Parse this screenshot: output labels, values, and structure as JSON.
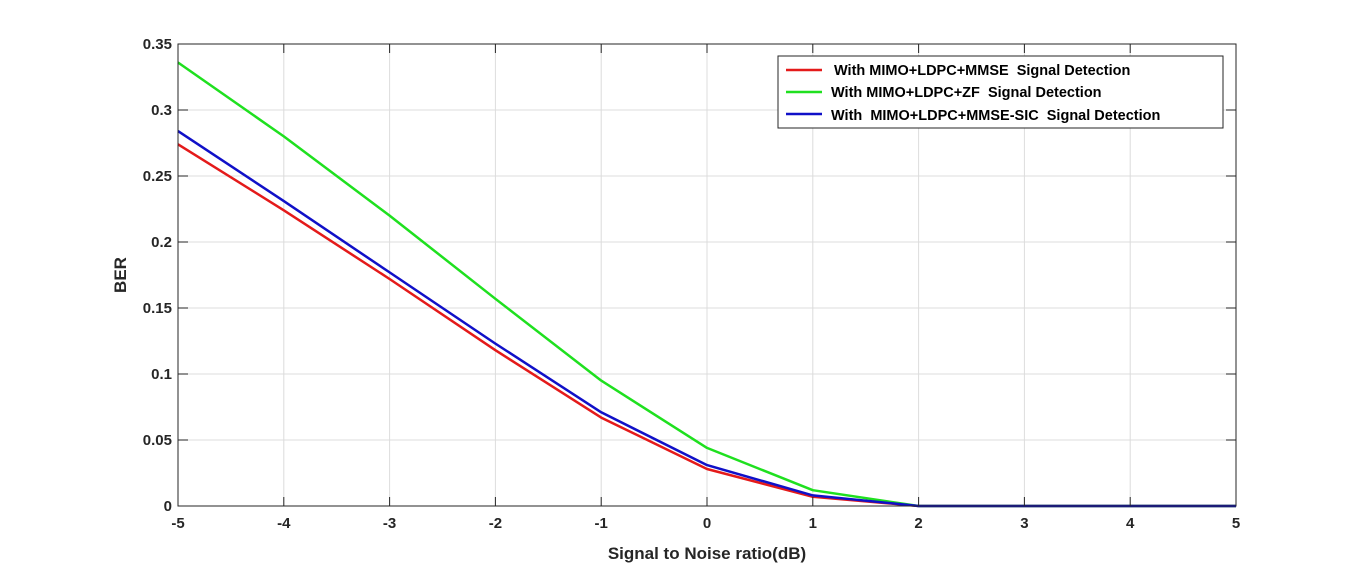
{
  "chart_data": {
    "type": "line",
    "title": "",
    "xlabel": "Signal to Noise ratio(dB)",
    "ylabel": "BER",
    "x": [
      -5,
      -4,
      -3,
      -2,
      -1,
      0,
      1,
      2,
      3,
      4,
      5
    ],
    "xlim": [
      -5,
      5
    ],
    "ylim": [
      0,
      0.35
    ],
    "xticks": [
      -5,
      -4,
      -3,
      -2,
      -1,
      0,
      1,
      2,
      3,
      4,
      5
    ],
    "xtick_labels": [
      "-5",
      "-4",
      "-3",
      "-2",
      "-1",
      "0",
      "1",
      "2",
      "3",
      "4",
      "5"
    ],
    "yticks": [
      0,
      0.05,
      0.1,
      0.15,
      0.2,
      0.25,
      0.3,
      0.35
    ],
    "ytick_labels": [
      "0",
      "0.05",
      "0.1",
      "0.15",
      "0.2",
      "0.25",
      "0.3",
      "0.35"
    ],
    "grid": true,
    "legend_position": "top-right",
    "series": [
      {
        "name": "With MIMO+LDPC+MMSE  Signal Detection",
        "color": "#e41a1a",
        "values": [
          0.274,
          0.224,
          0.172,
          0.118,
          0.067,
          0.028,
          0.007,
          0.0,
          0.0,
          0.0,
          0.0
        ]
      },
      {
        "name": "With MIMO+LDPC+ZF  Signal Detection",
        "color": "#1fe01f",
        "values": [
          0.336,
          0.28,
          0.22,
          0.157,
          0.095,
          0.044,
          0.012,
          0.0,
          0.0,
          0.0,
          0.0
        ]
      },
      {
        "name": "With  MIMO+LDPC+MMSE-SIC  Signal Detection",
        "color": "#1010c8",
        "values": [
          0.284,
          0.231,
          0.177,
          0.123,
          0.071,
          0.031,
          0.008,
          0.0,
          0.0,
          0.0,
          0.0
        ]
      }
    ]
  }
}
